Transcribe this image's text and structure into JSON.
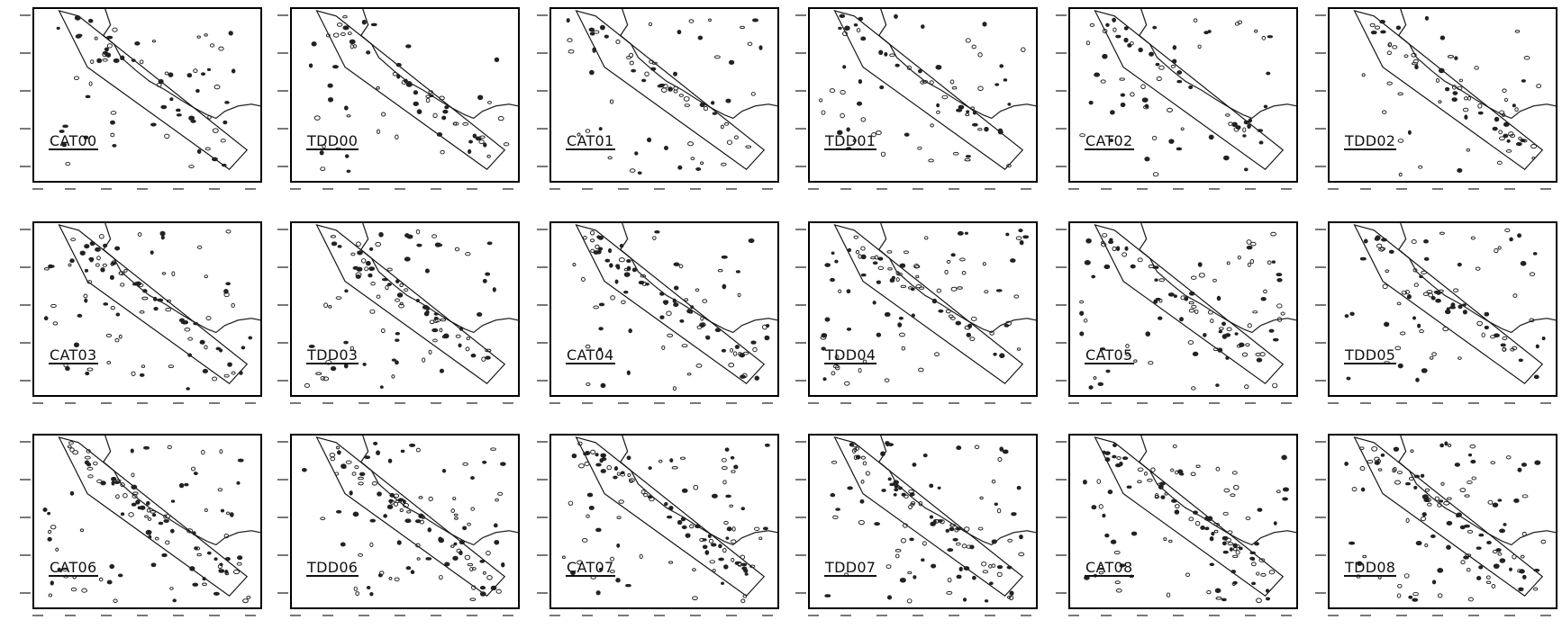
{
  "panels": [
    {
      "label": "CAT00"
    },
    {
      "label": "TDD00"
    },
    {
      "label": "CAT01"
    },
    {
      "label": "TDD01"
    },
    {
      "label": "CAT02"
    },
    {
      "label": "TDD02"
    },
    {
      "label": "CAT03"
    },
    {
      "label": "TDD03"
    },
    {
      "label": "CAT04"
    },
    {
      "label": "TDD04"
    },
    {
      "label": "CAT05"
    },
    {
      "label": "TDD05"
    },
    {
      "label": "CAT06"
    },
    {
      "label": "TDD06"
    },
    {
      "label": "CAT07"
    },
    {
      "label": "TDD07"
    },
    {
      "label": "CAT08"
    },
    {
      "label": "TDD08"
    }
  ]
}
